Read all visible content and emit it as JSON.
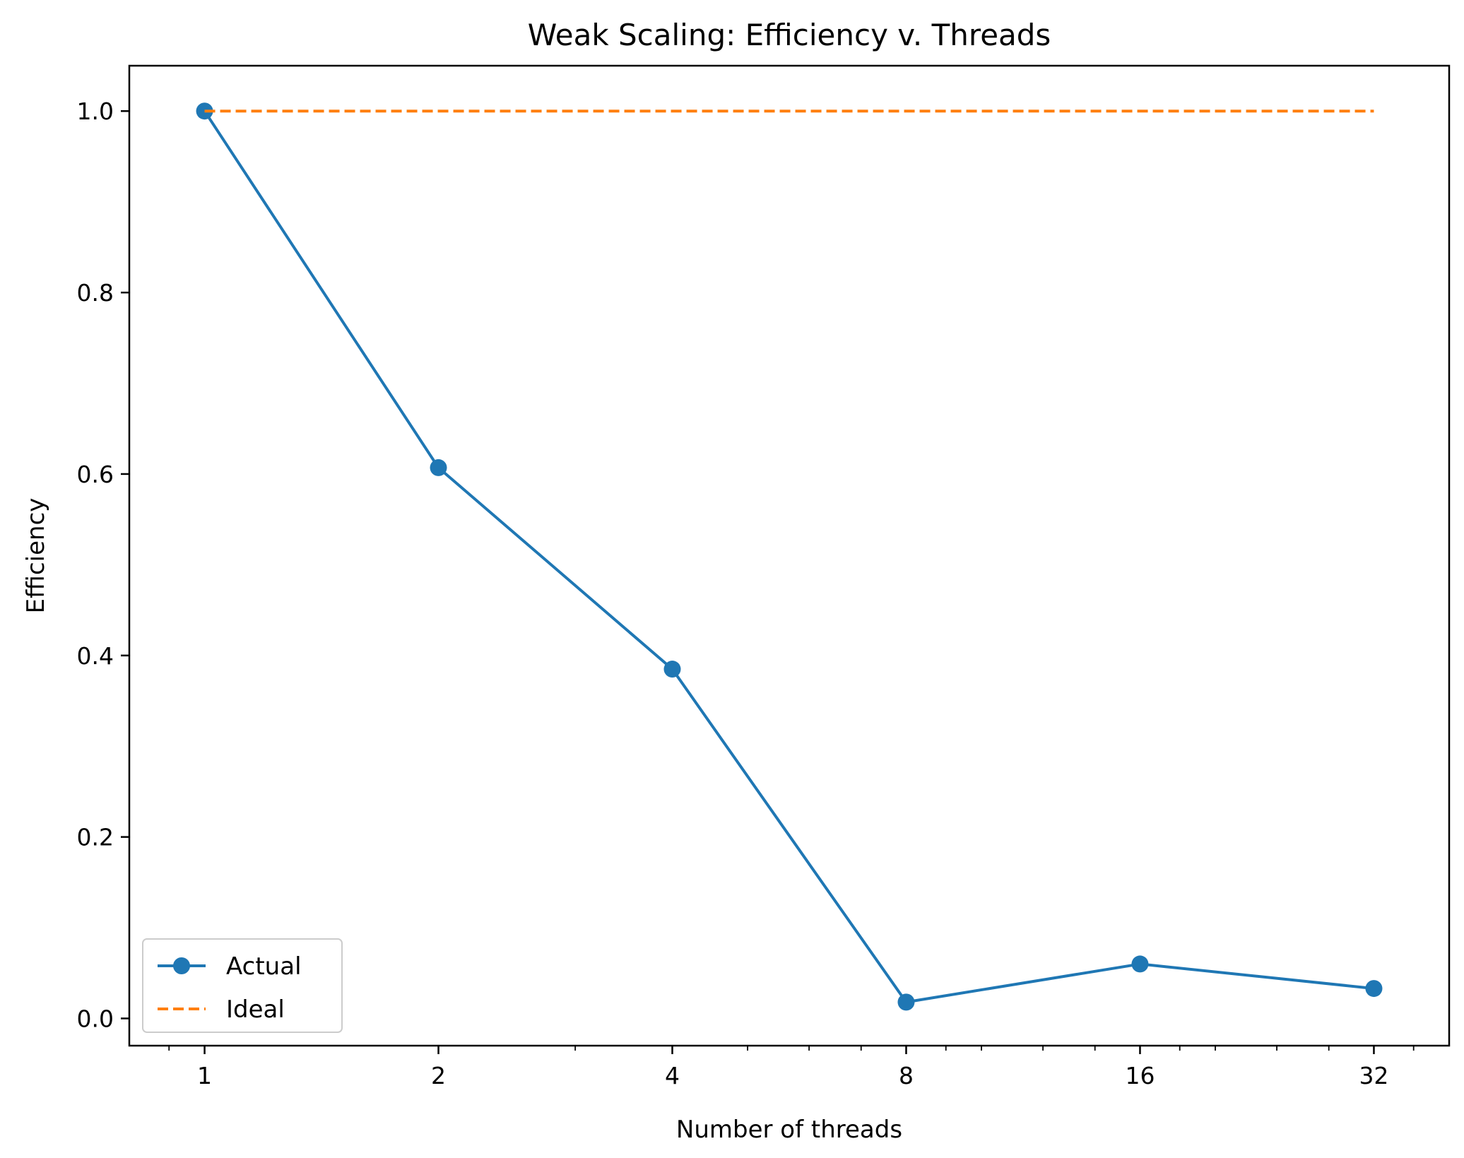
{
  "chart_data": {
    "type": "line",
    "title": "Weak Scaling: Efficiency v. Threads",
    "xlabel": "Number of threads",
    "ylabel": "Efficiency",
    "x_scale": "log2",
    "x": [
      1,
      2,
      4,
      8,
      16,
      32
    ],
    "x_tick_labels": [
      "1",
      "2",
      "4",
      "8",
      "16",
      "32"
    ],
    "xlim": [
      0.8,
      40
    ],
    "ylim": [
      -0.03,
      1.05
    ],
    "y_ticks": [
      0.0,
      0.2,
      0.4,
      0.6,
      0.8,
      1.0
    ],
    "y_tick_labels": [
      "0.0",
      "0.2",
      "0.4",
      "0.6",
      "0.8",
      "1.0"
    ],
    "grid": false,
    "legend_position": "lower-left",
    "series": [
      {
        "name": "Actual",
        "values": [
          1.0,
          0.607,
          0.385,
          0.018,
          0.06,
          0.033
        ],
        "color": "#1f77b4",
        "style": "solid",
        "marker": "circle"
      },
      {
        "name": "Ideal",
        "values": [
          1.0,
          1.0,
          1.0,
          1.0,
          1.0,
          1.0
        ],
        "color": "#ff7f0e",
        "style": "dashed",
        "marker": "none"
      }
    ]
  }
}
